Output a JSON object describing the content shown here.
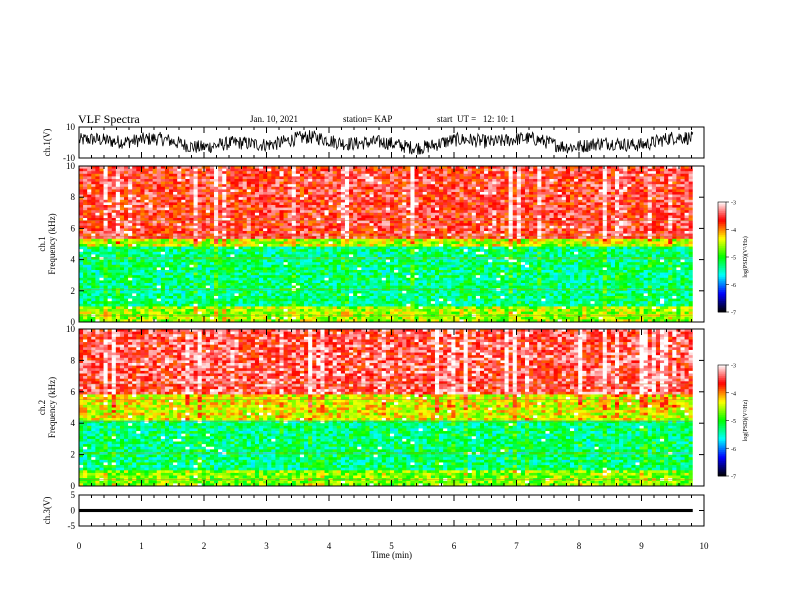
{
  "header": {
    "title": "VLF Spectra",
    "date": "Jan. 10, 2021",
    "station": "station= KAP",
    "start": "start  UT =   12: 10: 1"
  },
  "chart_data": [
    {
      "type": "line",
      "panel": "ch1-waveform",
      "ylabel": "ch.1(V)",
      "ylim": [
        -10,
        10
      ],
      "yticks": [
        "10",
        "-10"
      ],
      "xlim": [
        0,
        10
      ],
      "series": [
        {
          "description_values_note": "",
          "values_min": -8,
          "values_max": 8
        }
      ]
    },
    {
      "type": "heatmap",
      "panel": "ch1-spectrogram",
      "ylabel": "ch.1\nFrequency  (kHz)",
      "ylim": [
        0,
        10
      ],
      "yticks": [
        "0",
        "2",
        "4",
        "6",
        "8",
        "10"
      ],
      "xlim": [
        0,
        10
      ],
      "colorbar": {
        "label": "log(PSD)(V²/Hz)",
        "range": [
          -7,
          -3
        ],
        "ticks": [
          "-3",
          "-4",
          "-5",
          "-6",
          "-7"
        ]
      },
      "bands": [
        {
          "from": 0,
          "to": 1,
          "level": -4.6
        },
        {
          "from": 1,
          "to": 4.8,
          "level": -5.3
        },
        {
          "from": 4.8,
          "to": 5.4,
          "level": -4.5
        },
        {
          "from": 5.4,
          "to": 10,
          "level": -3.6
        }
      ]
    },
    {
      "type": "heatmap",
      "panel": "ch2-spectrogram",
      "ylabel": "ch.2\nFrequency  (kHz)",
      "ylim": [
        0,
        10
      ],
      "yticks": [
        "0",
        "2",
        "4",
        "6",
        "8",
        "10"
      ],
      "xlim": [
        0,
        10
      ],
      "colorbar": {
        "label": "log(PSD)(V²/Hz)",
        "range": [
          -7,
          -3
        ],
        "ticks": [
          "-3",
          "-4",
          "-5",
          "-6",
          "-7"
        ]
      },
      "bands": [
        {
          "from": 0,
          "to": 1,
          "level": -4.7
        },
        {
          "from": 1,
          "to": 4.2,
          "level": -5.3
        },
        {
          "from": 4.2,
          "to": 5.8,
          "level": -4.4
        },
        {
          "from": 5.8,
          "to": 10,
          "level": -3.5
        }
      ]
    },
    {
      "type": "line",
      "panel": "ch3-waveform",
      "ylabel": "ch.3(V)",
      "ylim": [
        -5,
        5
      ],
      "yticks": [
        "5",
        "0",
        "-5"
      ],
      "xlim": [
        0,
        10
      ],
      "series": [
        {
          "values_min": -0.5,
          "values_max": 0.5
        }
      ]
    }
  ],
  "xaxis": {
    "label": "Time  (min)",
    "ticks": [
      "0",
      "1",
      "2",
      "3",
      "4",
      "5",
      "6",
      "7",
      "8",
      "9",
      "10"
    ],
    "data_end": 9.82
  },
  "colors": {
    "colormap": [
      "#000000",
      "#0000ff",
      "#00ffff",
      "#00ff00",
      "#ffff00",
      "#ff0000",
      "#ffffff"
    ]
  }
}
